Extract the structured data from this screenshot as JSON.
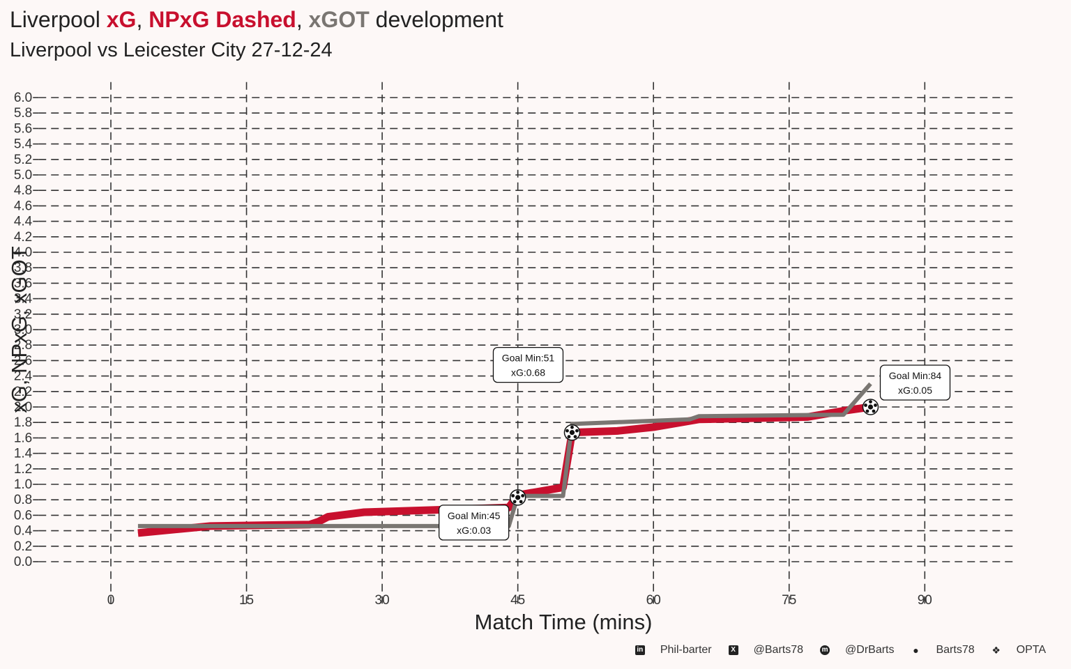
{
  "title": {
    "prefix": "Liverpool ",
    "xg": "xG",
    "sep1": ", ",
    "npxg": "NPxG Dashed",
    "sep2": ", ",
    "xgot": "xGOT",
    "suffix": " development"
  },
  "subtitle": "Liverpool vs Leicester City 27-12-24",
  "colors": {
    "background": "#fdf8f7",
    "xg": "#c8102e",
    "xgot": "#7a7672",
    "grid": "#333333"
  },
  "chart_data": {
    "type": "line",
    "xlabel": "Match Time (mins)",
    "ylabel": "xG, NPxG, xGOT",
    "xlim": [
      -8,
      100
    ],
    "ylim": [
      -0.2,
      6.2
    ],
    "x_ticks": [
      0,
      15,
      30,
      45,
      60,
      75,
      90
    ],
    "y_ticks": [
      0.0,
      0.2,
      0.4,
      0.6,
      0.8,
      1.0,
      1.2,
      1.4,
      1.6,
      1.8,
      2.0,
      2.2,
      2.4,
      2.6,
      2.8,
      3.0,
      3.2,
      3.4,
      3.6,
      3.8,
      4.0,
      4.2,
      4.4,
      4.6,
      4.8,
      5.0,
      5.2,
      5.4,
      5.6,
      5.8,
      6.0
    ],
    "grid": true,
    "series": [
      {
        "key": "xg",
        "points": [
          [
            3,
            0.37
          ],
          [
            11,
            0.46
          ],
          [
            22,
            0.48
          ],
          [
            23,
            0.52
          ],
          [
            24,
            0.58
          ],
          [
            28,
            0.64
          ],
          [
            44,
            0.7
          ],
          [
            45,
            0.86
          ],
          [
            50,
            0.96
          ],
          [
            51,
            1.67
          ],
          [
            56,
            1.69
          ],
          [
            60,
            1.74
          ],
          [
            65,
            1.84
          ],
          [
            77,
            1.87
          ],
          [
            81,
            1.95
          ],
          [
            84,
            2.0
          ]
        ]
      },
      {
        "key": "npxg",
        "dashed": true,
        "points": [
          [
            3,
            0.37
          ],
          [
            11,
            0.46
          ],
          [
            22,
            0.48
          ],
          [
            23,
            0.52
          ],
          [
            24,
            0.58
          ],
          [
            28,
            0.64
          ],
          [
            44,
            0.7
          ],
          [
            45,
            0.86
          ],
          [
            50,
            0.96
          ],
          [
            51,
            1.67
          ],
          [
            56,
            1.69
          ],
          [
            60,
            1.74
          ],
          [
            65,
            1.84
          ],
          [
            77,
            1.87
          ],
          [
            81,
            1.95
          ],
          [
            84,
            2.0
          ]
        ]
      },
      {
        "key": "xgot",
        "points": [
          [
            3,
            0.46
          ],
          [
            44,
            0.46
          ],
          [
            45,
            0.85
          ],
          [
            50,
            0.85
          ],
          [
            51,
            1.78
          ],
          [
            64,
            1.84
          ],
          [
            65,
            1.88
          ],
          [
            81,
            1.9
          ],
          [
            84,
            2.3
          ]
        ]
      }
    ],
    "goals": [
      {
        "minute": 45,
        "y": 0.83,
        "label1": "Goal Min:45",
        "label2": "xG:0.03",
        "box": "below-left"
      },
      {
        "minute": 51,
        "y": 1.67,
        "label1": "Goal Min:51",
        "label2": "xG:0.68",
        "box": "above-left"
      },
      {
        "minute": 84,
        "y": 2.0,
        "label1": "Goal Min:84",
        "label2": "xG:0.05",
        "box": "above-right"
      }
    ]
  },
  "footer": {
    "items": [
      {
        "icon": "linkedin-icon",
        "label": "Phil-barter"
      },
      {
        "icon": "x-icon",
        "label": "@Barts78"
      },
      {
        "icon": "mastodon-icon",
        "label": "@DrBarts"
      },
      {
        "icon": "github-icon",
        "label": "Barts78"
      },
      {
        "icon": "dropbox-icon",
        "label": "OPTA"
      }
    ]
  }
}
